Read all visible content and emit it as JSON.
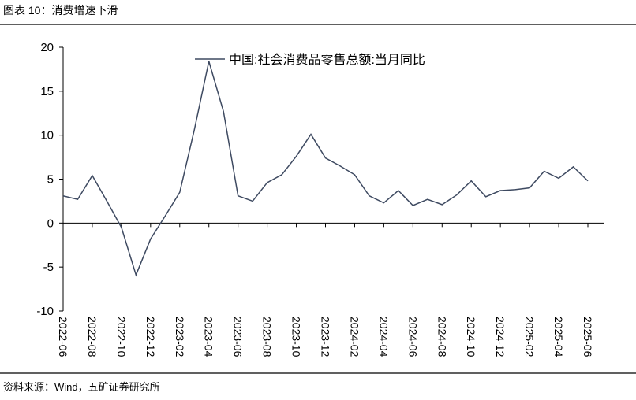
{
  "header": {
    "title": "图表 10：消费增速下滑"
  },
  "chart_data": {
    "type": "line",
    "categories": [
      "2022-06",
      null,
      "2022-08",
      null,
      "2022-10",
      null,
      "2022-12",
      null,
      "2023-02",
      null,
      "2023-04",
      null,
      "2023-06",
      null,
      "2023-08",
      null,
      "2023-10",
      null,
      "2023-12",
      null,
      "2024-02",
      null,
      "2024-04",
      null,
      "2024-06",
      null,
      "2024-08",
      null,
      "2024-10",
      null,
      "2024-12",
      null,
      "2025-02",
      null,
      "2025-04",
      null,
      "2025-06"
    ],
    "series": [
      {
        "name": "中国:社会消费品零售总额:当月同比",
        "color": "#3e4a61",
        "values": [
          3.1,
          2.7,
          5.4,
          2.5,
          -0.5,
          -5.9,
          -1.8,
          0.8,
          3.5,
          10.6,
          18.4,
          12.7,
          3.1,
          2.5,
          4.6,
          5.5,
          7.6,
          10.1,
          7.4,
          6.5,
          5.5,
          3.1,
          2.3,
          3.7,
          2.0,
          2.7,
          2.1,
          3.2,
          4.8,
          3.0,
          3.7,
          3.8,
          4.0,
          5.9,
          5.1,
          6.4,
          4.8
        ]
      }
    ],
    "ylim": [
      -10,
      20
    ],
    "yticks": [
      -10,
      -5,
      0,
      5,
      10,
      15,
      20
    ],
    "legend": "top"
  },
  "footer": {
    "source": "资料来源：Wind，五矿证券研究所"
  }
}
